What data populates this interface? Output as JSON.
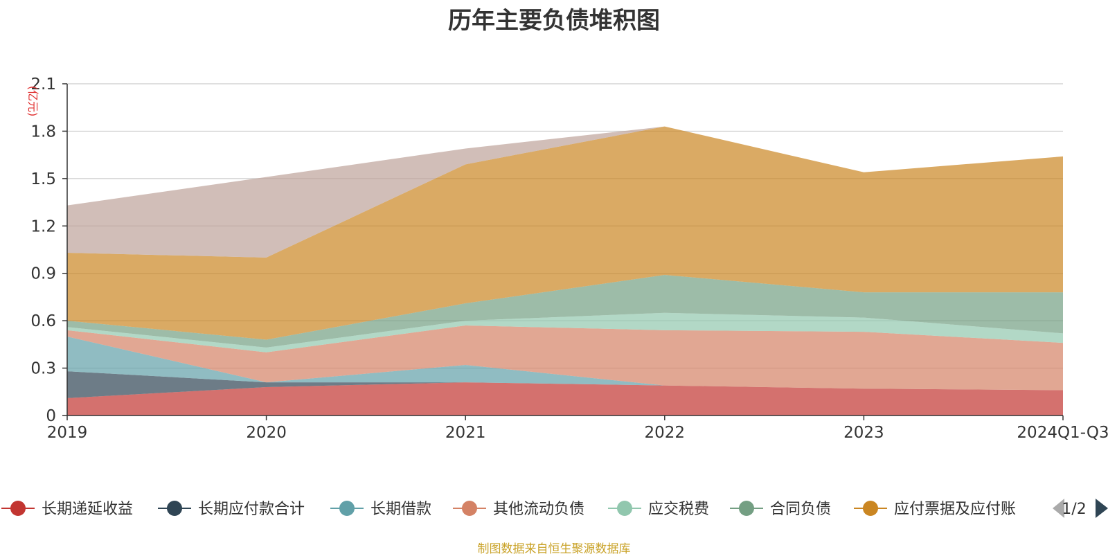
{
  "chart_data": {
    "type": "area",
    "stacked": true,
    "title": "历年主要负债堆积图",
    "unit_label": "(亿元)",
    "categories": [
      "2019",
      "2020",
      "2021",
      "2022",
      "2023",
      "2024Q1-Q3"
    ],
    "y_ticks": [
      "0",
      "0.3",
      "0.6",
      "0.9",
      "1.2",
      "1.5",
      "1.8",
      "2.1"
    ],
    "ylim": [
      0,
      2.1
    ],
    "grid": true,
    "legend_position": "bottom",
    "series": [
      {
        "name": "长期递延收益",
        "color": "#c23531",
        "legend_color": "#c23531",
        "values": [
          0.11,
          0.18,
          0.21,
          0.19,
          0.17,
          0.16
        ]
      },
      {
        "name": "长期应付款合计",
        "color": "#2f4554",
        "legend_color": "#2f4554",
        "values": [
          0.17,
          0.03,
          0.0,
          0.0,
          0.0,
          0.0
        ]
      },
      {
        "name": "长期借款",
        "color": "#61a0a8",
        "legend_color": "#61a0a8",
        "values": [
          0.22,
          0.0,
          0.11,
          0.0,
          0.0,
          0.0
        ]
      },
      {
        "name": "其他流动负债",
        "color": "#d48265",
        "legend_color": "#d48265",
        "values": [
          0.04,
          0.19,
          0.25,
          0.35,
          0.36,
          0.3
        ]
      },
      {
        "name": "应交税费",
        "color": "#91c7ae",
        "legend_color": "#91c7ae",
        "values": [
          0.02,
          0.03,
          0.03,
          0.11,
          0.09,
          0.06
        ]
      },
      {
        "name": "合同负债",
        "color": "#749f83",
        "legend_color": "#749f83",
        "values": [
          0.04,
          0.05,
          0.11,
          0.24,
          0.16,
          0.26
        ]
      },
      {
        "name": "应付票据及应付账",
        "color": "#ca8622",
        "legend_color": "#ca8622",
        "values": [
          0.43,
          0.52,
          0.88,
          0.94,
          0.76,
          0.86
        ]
      },
      {
        "name": "",
        "color": "#bda29a",
        "legend_color": "#bda29a",
        "values": [
          0.3,
          0.51,
          0.1,
          0.0,
          0.0,
          0.0
        ]
      }
    ],
    "legend_page": "1/2"
  },
  "footer": {
    "source": "制图数据来自恒生聚源数据库"
  }
}
